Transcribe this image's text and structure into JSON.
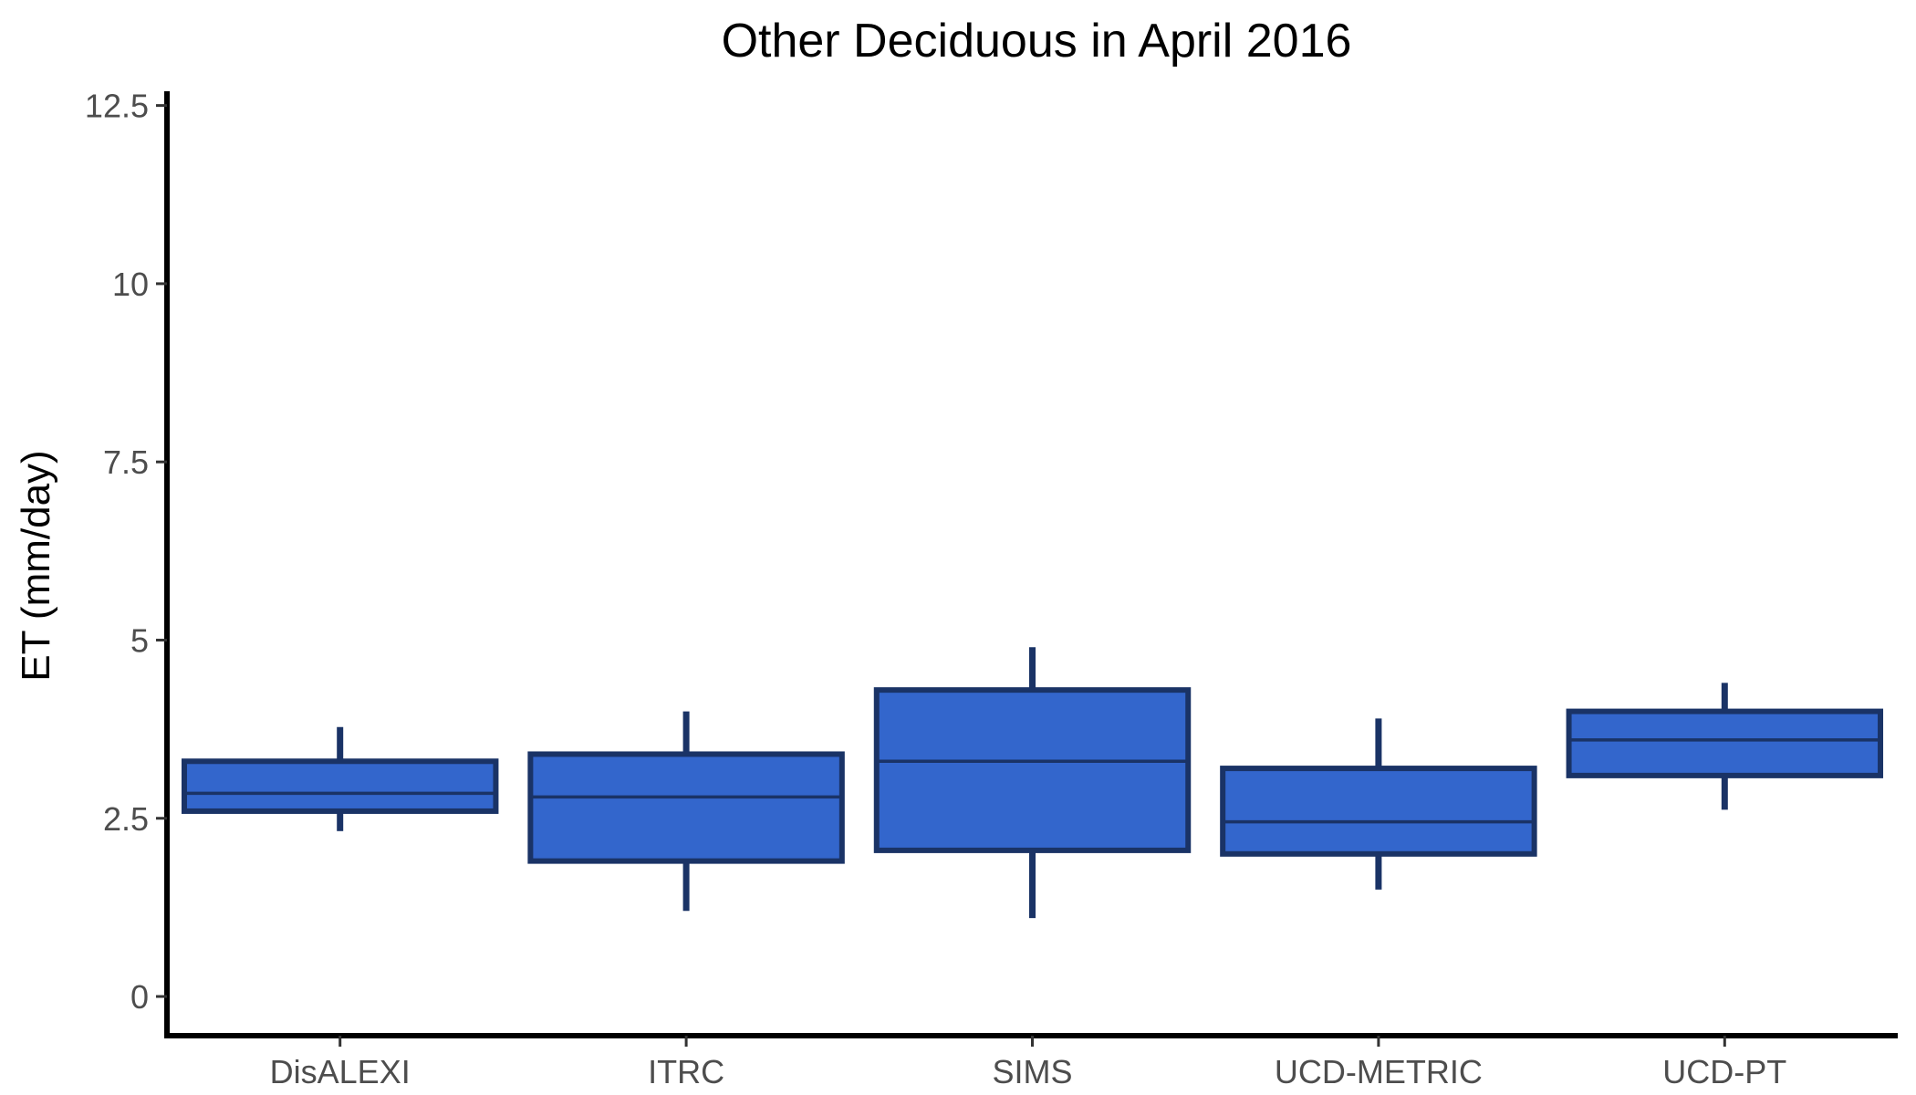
{
  "chart_data": {
    "type": "boxplot",
    "title": "Other Deciduous in April 2016",
    "xlabel": "",
    "ylabel": "ET (mm/day)",
    "ylim": [
      -0.55,
      12.7
    ],
    "yticks": [
      0,
      2.5,
      5,
      7.5,
      10,
      12.5
    ],
    "ytick_labels": [
      "0",
      "2.5",
      "5",
      "7.5",
      "10",
      "12.5"
    ],
    "grid": false,
    "legend": "none",
    "categories": [
      "DisALEXI",
      "ITRC",
      "SIMS",
      "UCD-METRIC",
      "UCD-PT"
    ],
    "boxes": [
      {
        "name": "DisALEXI",
        "whisker_low": 2.32,
        "q1": 2.6,
        "median": 2.85,
        "q3": 3.3,
        "whisker_high": 3.78
      },
      {
        "name": "ITRC",
        "whisker_low": 1.2,
        "q1": 1.9,
        "median": 2.8,
        "q3": 3.4,
        "whisker_high": 4.0
      },
      {
        "name": "SIMS",
        "whisker_low": 1.1,
        "q1": 2.05,
        "median": 3.3,
        "q3": 4.3,
        "whisker_high": 4.9
      },
      {
        "name": "UCD-METRIC",
        "whisker_low": 1.5,
        "q1": 2.0,
        "median": 2.45,
        "q3": 3.2,
        "whisker_high": 3.9
      },
      {
        "name": "UCD-PT",
        "whisker_low": 2.62,
        "q1": 3.1,
        "median": 3.6,
        "q3": 4.0,
        "whisker_high": 4.4
      }
    ],
    "colors": {
      "box_fill": "#3366cc",
      "box_outline": "#1a3366",
      "axis": "#000000"
    }
  }
}
